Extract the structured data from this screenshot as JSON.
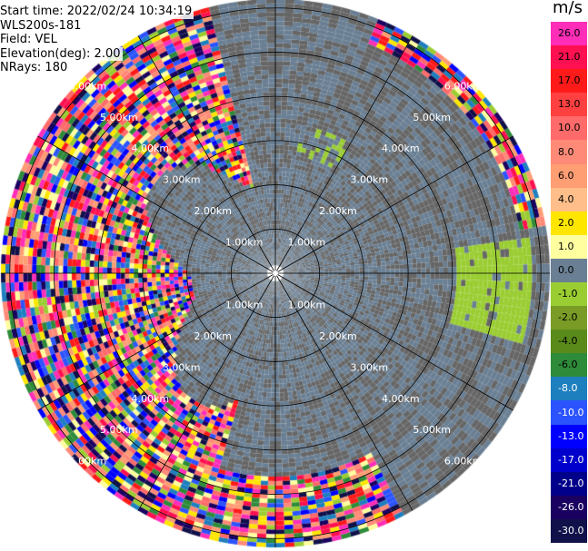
{
  "header": {
    "start_time": "Start time: 2022/02/24 10:34:19",
    "instrument": "WLS200s-181",
    "field": "Field: VEL",
    "elevation": "Elevation(deg): 2.00",
    "nrays": "NRays: 180"
  },
  "colorbar": {
    "unit": "m/s",
    "ticks": [
      "26.0",
      "21.0",
      "17.0",
      "13.0",
      "10.0",
      "8.0",
      "6.0",
      "4.0",
      "2.0",
      "1.0",
      "0.0",
      "-1.0",
      "-2.0",
      "-4.0",
      "-6.0",
      "-8.0",
      "-10.0",
      "-13.0",
      "-17.0",
      "-21.0",
      "-26.0",
      "-30.0"
    ],
    "colors": [
      "#ff2db8",
      "#ff1050",
      "#ff1a1a",
      "#ff4040",
      "#ff6a6a",
      "#ff8a78",
      "#ff9d73",
      "#ffbe8a",
      "#ffe600",
      "#ffffa0",
      "#6a7f93",
      "#9acd32",
      "#7a9b26",
      "#5a8a1a",
      "#2e8b3a",
      "#1e7fbf",
      "#2b54ff",
      "#0000ff",
      "#0000cc",
      "#00008a",
      "#1a0060",
      "#10104a"
    ]
  },
  "chart_data": {
    "type": "ppi",
    "title": "",
    "range_rings": [
      {
        "left": "1.00km",
        "right": "1.00km"
      },
      {
        "left": "2.00km",
        "right": "2.00km"
      },
      {
        "left": "3.00km",
        "right": "3.00km"
      },
      {
        "left": "4.00km",
        "right": "4.00km"
      },
      {
        "left": "5.00km",
        "right": "5.00km"
      },
      {
        "left": "6.00km",
        "right": "6.00km"
      }
    ],
    "ring_km": [
      1,
      2,
      3,
      4,
      5,
      6
    ],
    "max_range_km": 6.2,
    "spoke_azimuths_deg": [
      0,
      30,
      60,
      90,
      120,
      150,
      180,
      210,
      240,
      270,
      300,
      330
    ],
    "rays": 180,
    "grid": true
  }
}
